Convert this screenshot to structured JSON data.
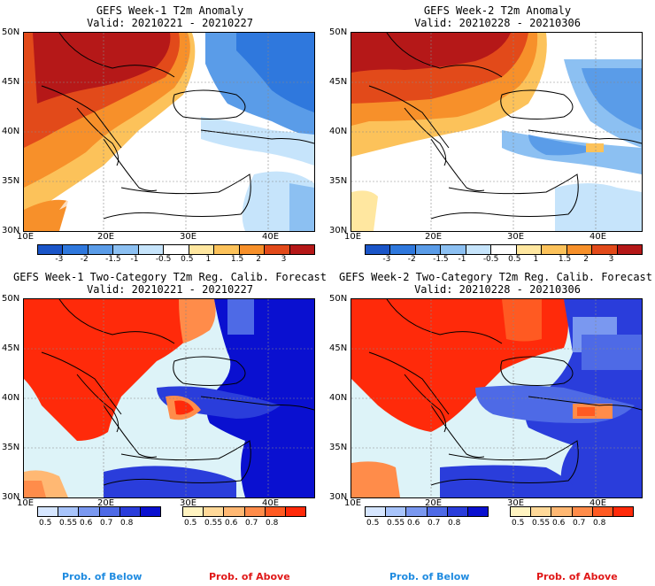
{
  "panels": [
    {
      "title": "GEFS Week-1 T2m Anomaly",
      "valid": "Valid: 20210221 - 20210227"
    },
    {
      "title": "GEFS Week-2 T2m Anomaly",
      "valid": "Valid: 20210228 - 20210306"
    },
    {
      "title": "GEFS Week-1 Two-Category T2m Reg. Calib. Forecast",
      "valid": "Valid: 20210221 - 20210227"
    },
    {
      "title": "GEFS Week-2 Two-Category T2m Reg. Calib. Forecast",
      "valid": "Valid: 20210228 - 20210306"
    }
  ],
  "lat_labels": [
    "50N",
    "45N",
    "40N",
    "35N",
    "30N"
  ],
  "lon_labels": [
    "10E",
    "20E",
    "30E",
    "40E"
  ],
  "anomaly_colorbar": {
    "labels": [
      "-3",
      "-2",
      "-1.5",
      "-1",
      "-0.5",
      "0.5",
      "1",
      "1.5",
      "2",
      "3"
    ],
    "colors": [
      "#1a55c8",
      "#2f78dd",
      "#5a9ce8",
      "#8cc0f2",
      "#c6e4fb",
      "#ffffff",
      "#ffe7a0",
      "#fcc25a",
      "#f7902a",
      "#e24a1a",
      "#b51818"
    ]
  },
  "below_colorbar": {
    "labels": [
      "0.5",
      "0.55",
      "0.6",
      "0.7",
      "0.8"
    ],
    "colors": [
      "#d6e6ff",
      "#a8c4fb",
      "#7a98f0",
      "#4e6ae6",
      "#2a3ddb",
      "#0a10d0"
    ]
  },
  "above_colorbar": {
    "labels": [
      "0.5",
      "0.55",
      "0.6",
      "0.7",
      "0.8"
    ],
    "colors": [
      "#fff3c0",
      "#ffd999",
      "#ffb873",
      "#ff8c4a",
      "#ff5a22",
      "#ff2a0a"
    ]
  },
  "legend": {
    "below": "Prob. of Below",
    "above": "Prob. of Above"
  },
  "colors": {
    "below_text": "#1f8be0",
    "above_text": "#e01818"
  }
}
